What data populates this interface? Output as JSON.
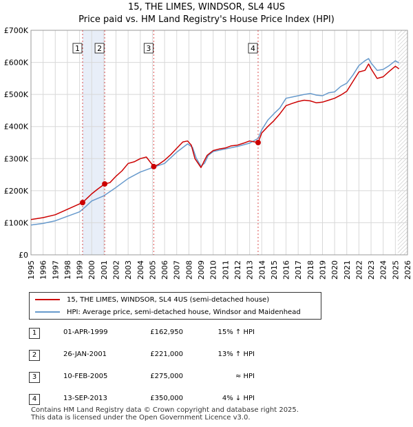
{
  "title": {
    "line1": "15, THE LIMES, WINDSOR, SL4 4US",
    "line2": "Price paid vs. HM Land Registry's House Price Index (HPI)"
  },
  "legend": {
    "property": "15, THE LIMES, WINDSOR, SL4 4US (semi-detached house)",
    "hpi": "HPI: Average price, semi-detached house, Windsor and Maidenhead"
  },
  "sales": [
    {
      "num": "1",
      "date": "01-APR-1999",
      "price": "£162,950",
      "rel": "15% ↑ HPI"
    },
    {
      "num": "2",
      "date": "26-JAN-2001",
      "price": "£221,000",
      "rel": "13% ↑ HPI"
    },
    {
      "num": "3",
      "date": "10-FEB-2005",
      "price": "£275,000",
      "rel": "≈ HPI"
    },
    {
      "num": "4",
      "date": "13-SEP-2013",
      "price": "£350,000",
      "rel": "4% ↓ HPI"
    }
  ],
  "footer": {
    "line1": "Contains HM Land Registry data © Crown copyright and database right 2025.",
    "line2": "This data is licensed under the Open Government Licence v3.0."
  },
  "colors": {
    "property": "#cc0000",
    "hpi": "#6699cc",
    "sale_shade": "#e8eef8",
    "future_hatch": "#888888",
    "grid": "#d8d8d8"
  },
  "chart_data": {
    "type": "line",
    "xlim": [
      1995,
      2026
    ],
    "ylim": [
      0,
      700000
    ],
    "x_ticks": [
      1995,
      1996,
      1997,
      1998,
      1999,
      2000,
      2001,
      2002,
      2003,
      2004,
      2005,
      2006,
      2007,
      2008,
      2009,
      2010,
      2011,
      2012,
      2013,
      2014,
      2015,
      2016,
      2017,
      2018,
      2019,
      2020,
      2021,
      2022,
      2023,
      2024,
      2025,
      2026
    ],
    "y_ticks": [
      {
        "value": 0,
        "label": "£0"
      },
      {
        "value": 100000,
        "label": "£100K"
      },
      {
        "value": 200000,
        "label": "£200K"
      },
      {
        "value": 300000,
        "label": "£300K"
      },
      {
        "value": 400000,
        "label": "£400K"
      },
      {
        "value": 500000,
        "label": "£500K"
      },
      {
        "value": 600000,
        "label": "£600K"
      },
      {
        "value": 700000,
        "label": "£700K"
      }
    ],
    "future_start": 2025.2,
    "sale_markers": [
      {
        "label": "1",
        "x": 1999.25,
        "y": 162950
      },
      {
        "label": "2",
        "x": 2001.07,
        "y": 221000
      },
      {
        "label": "3",
        "x": 2005.11,
        "y": 275000
      },
      {
        "label": "4",
        "x": 2013.7,
        "y": 350000
      }
    ],
    "series": [
      {
        "name": "15, THE LIMES, WINDSOR, SL4 4US (semi-detached house)",
        "x": [
          1995.0,
          1996.0,
          1997.0,
          1998.0,
          1998.6,
          1999.25,
          2000.0,
          2000.5,
          2001.07,
          2001.5,
          2002.0,
          2002.5,
          2003.0,
          2003.5,
          2004.0,
          2004.5,
          2005.11,
          2005.5,
          2006.0,
          2006.5,
          2007.0,
          2007.5,
          2007.9,
          2008.2,
          2008.5,
          2009.0,
          2009.2,
          2009.5,
          2010.0,
          2010.5,
          2011.0,
          2011.5,
          2012.0,
          2012.5,
          2013.0,
          2013.7,
          2014.0,
          2014.5,
          2015.0,
          2015.5,
          2016.0,
          2016.5,
          2017.0,
          2017.5,
          2018.0,
          2018.5,
          2019.0,
          2019.5,
          2020.0,
          2020.5,
          2021.0,
          2021.5,
          2022.0,
          2022.5,
          2022.8,
          2023.0,
          2023.5,
          2024.0,
          2024.5,
          2025.0,
          2025.3
        ],
        "y": [
          110000,
          116000,
          125000,
          142000,
          152000,
          162950,
          190000,
          205000,
          221000,
          225000,
          245000,
          262000,
          285000,
          290000,
          300000,
          305000,
          275000,
          282000,
          295000,
          312000,
          332000,
          352000,
          355000,
          342000,
          300000,
          272000,
          288000,
          310000,
          325000,
          330000,
          333000,
          340000,
          342000,
          348000,
          355000,
          350000,
          380000,
          400000,
          418000,
          440000,
          465000,
          472000,
          478000,
          482000,
          480000,
          474000,
          476000,
          482000,
          488000,
          498000,
          510000,
          540000,
          570000,
          575000,
          595000,
          580000,
          550000,
          555000,
          572000,
          588000,
          580000
        ]
      },
      {
        "name": "HPI: Average price, semi-detached house, Windsor and Maidenhead",
        "x": [
          1995.0,
          1996.0,
          1997.0,
          1998.0,
          1999.0,
          1999.5,
          2000.0,
          2001.0,
          2002.0,
          2003.0,
          2004.0,
          2005.0,
          2006.0,
          2007.0,
          2007.9,
          2008.3,
          2008.6,
          2009.0,
          2009.3,
          2009.6,
          2010.0,
          2011.0,
          2012.0,
          2013.0,
          2013.7,
          2014.0,
          2014.5,
          2015.0,
          2015.5,
          2016.0,
          2016.5,
          2017.0,
          2017.5,
          2018.0,
          2018.5,
          2019.0,
          2019.5,
          2020.0,
          2020.5,
          2021.0,
          2021.5,
          2022.0,
          2022.5,
          2022.8,
          2023.0,
          2023.5,
          2024.0,
          2024.5,
          2025.0,
          2025.3
        ],
        "y": [
          93000,
          98000,
          106000,
          120000,
          134000,
          150000,
          168000,
          184000,
          210000,
          238000,
          258000,
          272000,
          285000,
          320000,
          346000,
          335000,
          302000,
          276000,
          286000,
          310000,
          322000,
          330000,
          338000,
          348000,
          363000,
          390000,
          420000,
          440000,
          458000,
          488000,
          492000,
          496000,
          500000,
          503000,
          498000,
          496000,
          505000,
          508000,
          525000,
          535000,
          560000,
          590000,
          605000,
          612000,
          598000,
          575000,
          578000,
          590000,
          605000,
          598000
        ]
      }
    ]
  }
}
